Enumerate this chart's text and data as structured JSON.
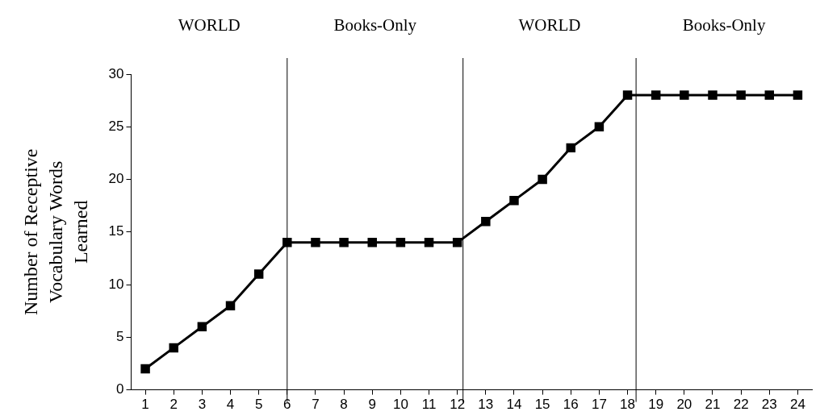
{
  "chart_data": {
    "type": "line",
    "ylabel": "Number of Receptive Vocabulary Words Learned",
    "x": [
      1,
      2,
      3,
      4,
      5,
      6,
      7,
      8,
      9,
      10,
      11,
      12,
      13,
      14,
      15,
      16,
      17,
      18,
      19,
      20,
      21,
      22,
      23,
      24
    ],
    "series": [
      {
        "color": "#000000",
        "values": [
          2,
          4,
          6,
          8,
          11,
          14,
          14,
          14,
          14,
          14,
          14,
          14,
          16,
          18,
          20,
          23,
          25,
          28,
          28,
          28,
          28,
          28,
          28,
          28
        ]
      }
    ],
    "xlim": [
      0.5,
      24.5
    ],
    "xticks": [
      1,
      2,
      3,
      4,
      5,
      6,
      7,
      8,
      9,
      10,
      11,
      12,
      13,
      14,
      15,
      16,
      17,
      18,
      19,
      20,
      21,
      22,
      23,
      24
    ],
    "ylim": [
      0,
      30
    ],
    "yticks": [
      0,
      5,
      10,
      15,
      20,
      25,
      30
    ],
    "ref_lines": [
      {
        "axis": "x",
        "value": 6,
        "color": "#000000"
      },
      {
        "axis": "x",
        "value": 12.2,
        "color": "#000000"
      },
      {
        "axis": "x",
        "value": 18.3,
        "color": "#000000"
      }
    ],
    "annotations": [
      "WORLD",
      "Books-Only",
      "WORLD",
      "Books-Only"
    ],
    "marker": "square",
    "line_style": "solid",
    "grid": false,
    "legend": false
  }
}
